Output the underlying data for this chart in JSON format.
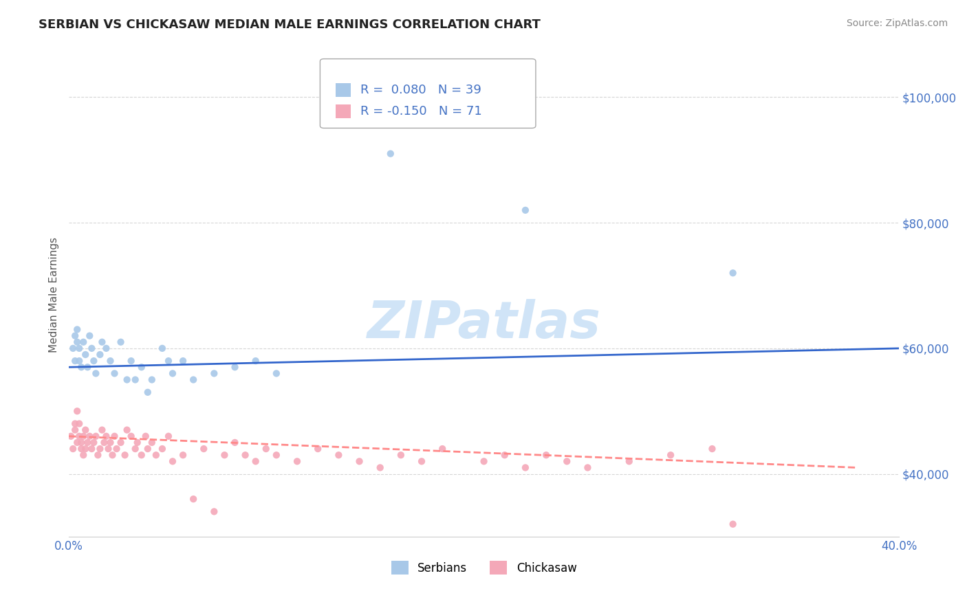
{
  "title": "SERBIAN VS CHICKASAW MEDIAN MALE EARNINGS CORRELATION CHART",
  "source": "Source: ZipAtlas.com",
  "ylabel": "Median Male Earnings",
  "xlim": [
    0,
    0.4
  ],
  "ylim": [
    30000,
    107000
  ],
  "yticks": [
    40000,
    60000,
    80000,
    100000
  ],
  "xticks": [
    0.0,
    0.05,
    0.1,
    0.15,
    0.2,
    0.25,
    0.3,
    0.35,
    0.4
  ],
  "serbian_R": 0.08,
  "serbian_N": 39,
  "chickasaw_R": -0.15,
  "chickasaw_N": 71,
  "serbian_color": "#a8c8e8",
  "chickasaw_color": "#f4a8b8",
  "serbian_line_color": "#3366cc",
  "chickasaw_line_color": "#ff8888",
  "title_color": "#222222",
  "axis_color": "#4472c4",
  "background_color": "#ffffff",
  "watermark_text": "ZIPatlas",
  "watermark_color": "#d0e4f7",
  "legend_R_color": "#4472c4",
  "srb_x": [
    0.002,
    0.003,
    0.003,
    0.004,
    0.004,
    0.005,
    0.005,
    0.006,
    0.007,
    0.008,
    0.009,
    0.01,
    0.011,
    0.012,
    0.013,
    0.015,
    0.016,
    0.018,
    0.02,
    0.022,
    0.025,
    0.028,
    0.03,
    0.032,
    0.035,
    0.038,
    0.04,
    0.045,
    0.048,
    0.05,
    0.055,
    0.06,
    0.07,
    0.08,
    0.09,
    0.1,
    0.155,
    0.22,
    0.32
  ],
  "srb_y": [
    60000,
    62000,
    58000,
    61000,
    63000,
    60000,
    58000,
    57000,
    61000,
    59000,
    57000,
    62000,
    60000,
    58000,
    56000,
    59000,
    61000,
    60000,
    58000,
    56000,
    61000,
    55000,
    58000,
    55000,
    57000,
    53000,
    55000,
    60000,
    58000,
    56000,
    58000,
    55000,
    56000,
    57000,
    58000,
    56000,
    91000,
    82000,
    72000
  ],
  "chk_x": [
    0.001,
    0.002,
    0.003,
    0.003,
    0.004,
    0.004,
    0.005,
    0.005,
    0.006,
    0.006,
    0.007,
    0.007,
    0.008,
    0.008,
    0.009,
    0.01,
    0.011,
    0.012,
    0.013,
    0.014,
    0.015,
    0.016,
    0.017,
    0.018,
    0.019,
    0.02,
    0.021,
    0.022,
    0.023,
    0.025,
    0.027,
    0.028,
    0.03,
    0.032,
    0.033,
    0.035,
    0.037,
    0.038,
    0.04,
    0.042,
    0.045,
    0.048,
    0.05,
    0.055,
    0.06,
    0.065,
    0.07,
    0.075,
    0.08,
    0.085,
    0.09,
    0.095,
    0.1,
    0.11,
    0.12,
    0.13,
    0.14,
    0.15,
    0.16,
    0.17,
    0.18,
    0.2,
    0.21,
    0.22,
    0.23,
    0.24,
    0.25,
    0.27,
    0.29,
    0.31,
    0.32
  ],
  "chk_y": [
    46000,
    44000,
    47000,
    48000,
    45000,
    50000,
    46000,
    48000,
    45000,
    44000,
    46000,
    43000,
    47000,
    44000,
    45000,
    46000,
    44000,
    45000,
    46000,
    43000,
    44000,
    47000,
    45000,
    46000,
    44000,
    45000,
    43000,
    46000,
    44000,
    45000,
    43000,
    47000,
    46000,
    44000,
    45000,
    43000,
    46000,
    44000,
    45000,
    43000,
    44000,
    46000,
    42000,
    43000,
    36000,
    44000,
    34000,
    43000,
    45000,
    43000,
    42000,
    44000,
    43000,
    42000,
    44000,
    43000,
    42000,
    41000,
    43000,
    42000,
    44000,
    42000,
    43000,
    41000,
    43000,
    42000,
    41000,
    42000,
    43000,
    44000,
    32000
  ],
  "srb_line_x": [
    0.0,
    0.4
  ],
  "srb_line_y": [
    57000,
    60000
  ],
  "chk_line_x": [
    0.0,
    0.38
  ],
  "chk_line_y": [
    46000,
    41000
  ]
}
